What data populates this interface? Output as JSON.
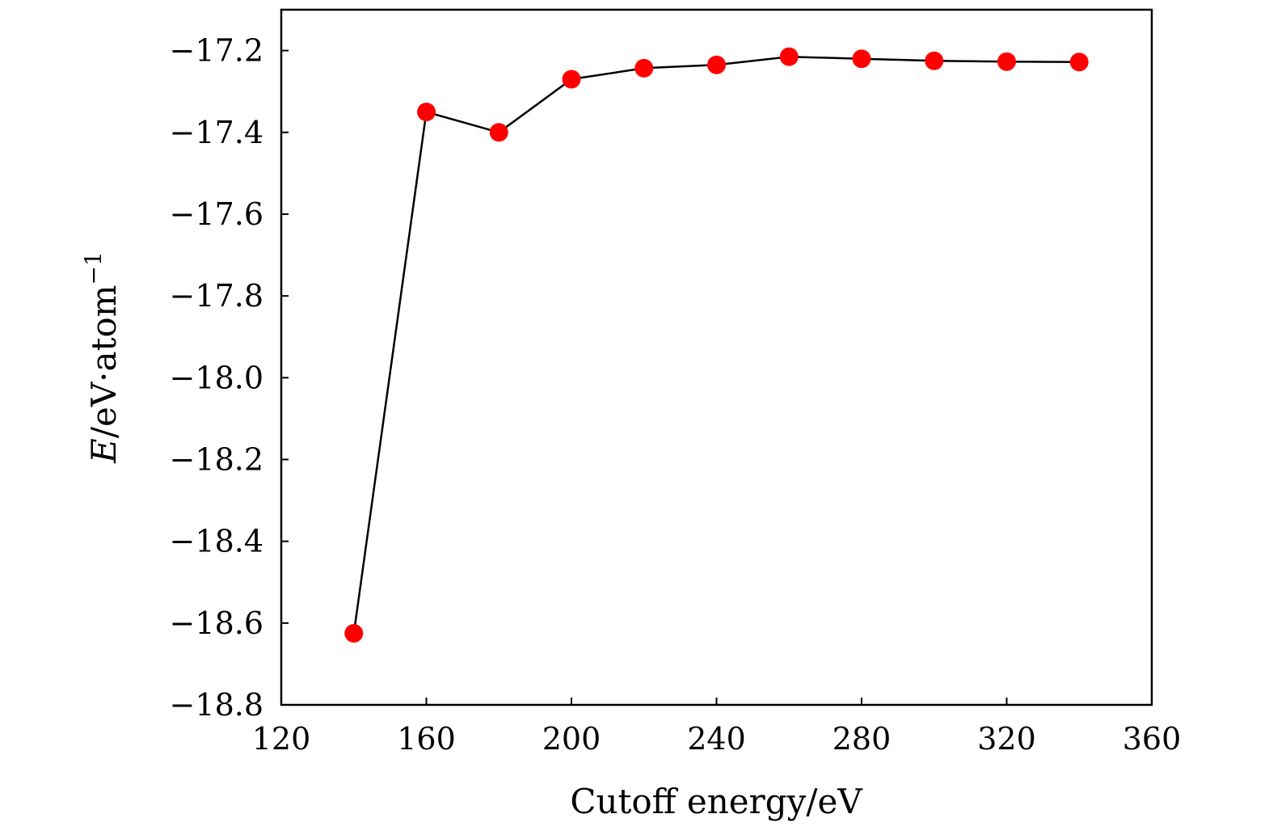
{
  "chart_data": {
    "type": "line",
    "title": "",
    "xlabel": "Cutoff energy/eV",
    "ylabel": {
      "symbol": "E",
      "unit": "/eV·atom",
      "exponent": "−1"
    },
    "xlim": [
      120,
      360
    ],
    "ylim": [
      -18.8,
      -17.1
    ],
    "xticks": [
      120,
      160,
      200,
      240,
      280,
      320,
      360
    ],
    "yticks": [
      -18.8,
      -18.6,
      -18.4,
      -18.2,
      -18.0,
      -17.8,
      -17.6,
      -17.4,
      -17.2
    ],
    "xtick_labels": [
      "120",
      "160",
      "200",
      "240",
      "280",
      "320",
      "360"
    ],
    "ytick_labels": [
      "−18.8",
      "−18.6",
      "−18.4",
      "−18.2",
      "−18.0",
      "−17.8",
      "−17.6",
      "−17.4",
      "−17.2"
    ],
    "grid": false,
    "legend": "none",
    "series": [
      {
        "x": [
          140,
          160,
          180,
          200,
          220,
          240,
          260,
          280,
          300,
          320,
          340
        ],
        "y": [
          -18.625,
          -17.35,
          -17.4,
          -17.27,
          -17.243,
          -17.235,
          -17.215,
          -17.22,
          -17.225,
          -17.227,
          -17.228
        ],
        "marker_color": "#ff0000",
        "line_color": "#000000"
      }
    ]
  }
}
